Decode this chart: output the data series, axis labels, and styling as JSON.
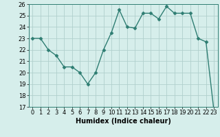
{
  "x": [
    0,
    1,
    2,
    3,
    4,
    5,
    6,
    7,
    8,
    9,
    10,
    11,
    12,
    13,
    14,
    15,
    16,
    17,
    18,
    19,
    20,
    21,
    22,
    23
  ],
  "y": [
    23,
    23,
    22,
    21.5,
    20.5,
    20.5,
    20,
    19,
    20,
    22,
    23.5,
    25.5,
    24,
    23.9,
    25.2,
    25.2,
    24.7,
    25.8,
    25.2,
    25.2,
    25.2,
    23,
    22.7,
    16.7
  ],
  "line_color": "#2e7d72",
  "marker_color": "#2e7d72",
  "bg_color": "#d6eeeb",
  "grid_color": "#b0d0cc",
  "xlabel": "Humidex (Indice chaleur)",
  "xlim": [
    -0.5,
    23.5
  ],
  "ylim": [
    17,
    26
  ],
  "yticks": [
    17,
    18,
    19,
    20,
    21,
    22,
    23,
    24,
    25,
    26
  ],
  "xticks": [
    0,
    1,
    2,
    3,
    4,
    5,
    6,
    7,
    8,
    9,
    10,
    11,
    12,
    13,
    14,
    15,
    16,
    17,
    18,
    19,
    20,
    21,
    22,
    23
  ],
  "xlabel_fontsize": 7,
  "tick_fontsize": 6,
  "line_width": 1.0,
  "marker_size": 2.5
}
